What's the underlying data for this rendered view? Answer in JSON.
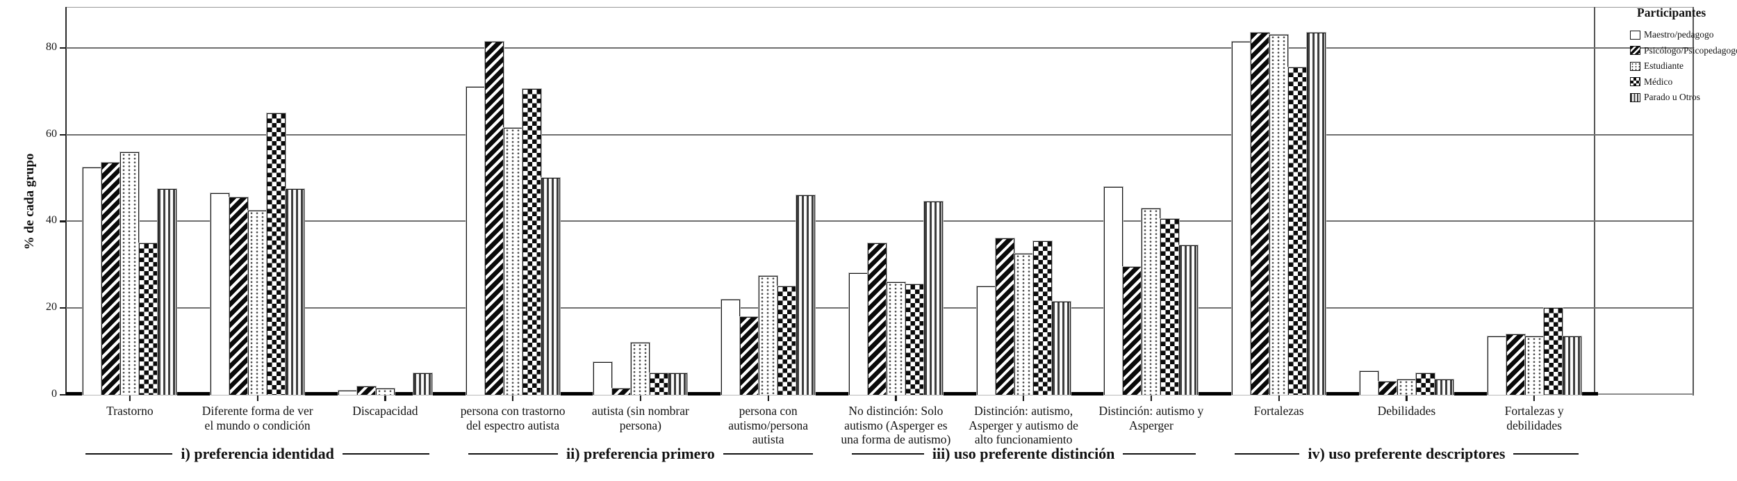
{
  "colors": {
    "ink": "#111111",
    "grid": "#6f6f6f",
    "axis": "#000000",
    "background": "#ffffff"
  },
  "chart_data": {
    "type": "bar",
    "ylabel": "% de cada grupo",
    "ylim": [
      0,
      89
    ],
    "yticks": [
      0,
      20,
      40,
      60,
      80
    ],
    "grid": "horizontal",
    "legend_position": "top-right-outside",
    "legend_title": "Participantes",
    "sections": [
      {
        "label": "i) preferencia identidad",
        "categories": [
          "Trastorno",
          "Diferente forma de ver el mundo o  condición",
          "Discapacidad"
        ]
      },
      {
        "label": "ii) preferencia primero",
        "categories": [
          "persona con trastorno del espectro autista",
          "autista (sin nombrar persona)",
          "persona con autismo/persona autista"
        ]
      },
      {
        "label": "iii) uso preferente distinción",
        "categories": [
          "No distinción: Solo autismo (Asperger es una forma de autismo)",
          "Distinción: autismo, Asperger y autismo de alto funcionamiento",
          "Distinción: autismo y Asperger"
        ]
      },
      {
        "label": "iv) uso preferente descriptores",
        "categories": [
          "Fortalezas",
          "Debilidades",
          "Fortalezas y debilidades"
        ]
      }
    ],
    "series": [
      {
        "name": "Maestro/pedagogo",
        "pattern": "solid-white",
        "values": [
          52.5,
          46.5,
          1,
          71,
          7.5,
          22,
          28,
          25,
          48,
          81.5,
          5.5,
          13.5
        ]
      },
      {
        "name": "Psicólogo/Psicopedagogo",
        "pattern": "diagonal-stripes",
        "values": [
          53.5,
          45.5,
          2,
          81.5,
          1.5,
          18,
          35,
          36,
          29.5,
          83.5,
          3,
          14
        ]
      },
      {
        "name": "Estudiante",
        "pattern": "dotted",
        "values": [
          56,
          42.5,
          1.5,
          61.5,
          12,
          27.5,
          26,
          32.5,
          43,
          83,
          3.5,
          13.5
        ]
      },
      {
        "name": "Médico",
        "pattern": "checkerboard",
        "values": [
          35,
          65,
          0,
          70.5,
          5,
          25,
          25.5,
          35.5,
          40.5,
          75.5,
          5,
          20
        ]
      },
      {
        "name": "Parado u Otros",
        "pattern": "vertical-stripes",
        "values": [
          47.5,
          47.5,
          5,
          50,
          5,
          46,
          44.5,
          21.5,
          34.5,
          83.5,
          3.5,
          13.5
        ]
      }
    ]
  }
}
